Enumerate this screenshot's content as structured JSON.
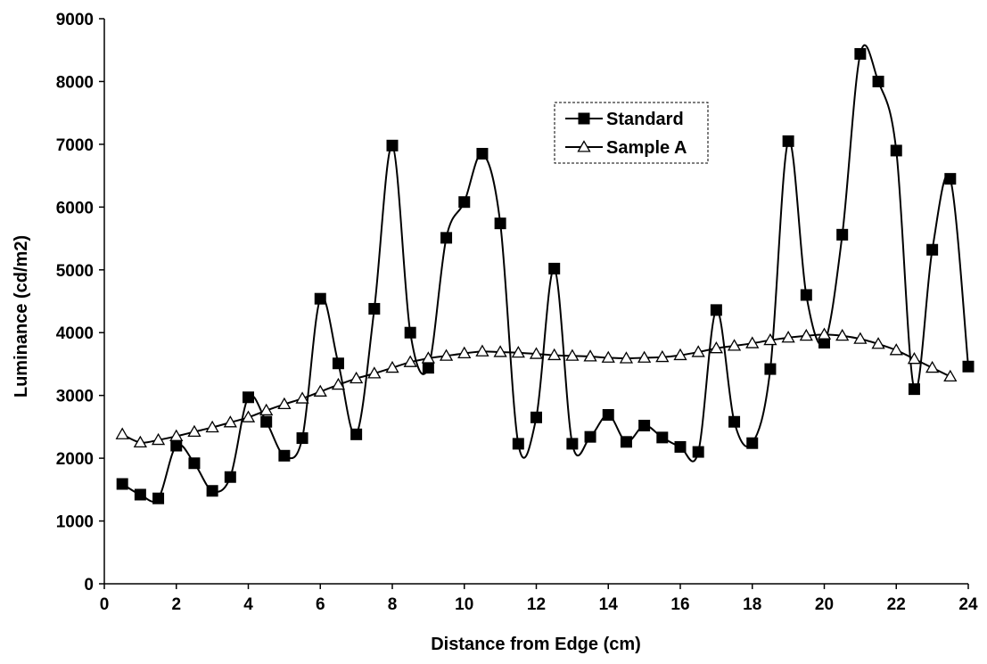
{
  "chart_data": {
    "type": "line",
    "xlabel": "Distance from Edge (cm)",
    "ylabel": "Luminance (cd/m2)",
    "xlim": [
      0,
      24
    ],
    "ylim": [
      0,
      9000
    ],
    "x_ticks": [
      "0",
      "2",
      "4",
      "6",
      "8",
      "10",
      "12",
      "14",
      "16",
      "18",
      "20",
      "22",
      "24"
    ],
    "y_ticks": [
      "0",
      "1000",
      "2000",
      "3000",
      "4000",
      "5000",
      "6000",
      "7000",
      "8000",
      "9000"
    ],
    "grid": false,
    "legend_position": "top-right",
    "series": [
      {
        "name": "Standard",
        "marker": "filled-square",
        "color": "#000000",
        "x": [
          0.5,
          1,
          1.5,
          2,
          2.5,
          3,
          3.5,
          4,
          4.5,
          5,
          5.5,
          6,
          6.5,
          7,
          7.5,
          8,
          8.5,
          9,
          9.5,
          10,
          10.5,
          11,
          11.5,
          12,
          12.5,
          13,
          13.5,
          14,
          14.5,
          15,
          15.5,
          16,
          16.5,
          17,
          17.5,
          18,
          18.5,
          19,
          19.5,
          20,
          20.5,
          21,
          21.5,
          22,
          22.5,
          23,
          23.5,
          24
        ],
        "values": [
          1590,
          1420,
          1360,
          2200,
          1920,
          1480,
          1700,
          2970,
          2580,
          2040,
          2320,
          4540,
          3510,
          2380,
          4380,
          6980,
          4000,
          3440,
          5510,
          6080,
          6850,
          5740,
          2230,
          2650,
          5020,
          2230,
          2340,
          2690,
          2260,
          2520,
          2330,
          2180,
          2100,
          4360,
          2580,
          2240,
          3420,
          7050,
          4600,
          3840,
          5560,
          8440,
          8000,
          6900,
          3100,
          5320,
          6450,
          3460
        ]
      },
      {
        "name": "Sample A",
        "marker": "open-triangle",
        "color": "#000000",
        "x": [
          0.5,
          1,
          1.5,
          2,
          2.5,
          3,
          3.5,
          4,
          4.5,
          5,
          5.5,
          6,
          6.5,
          7,
          7.5,
          8,
          8.5,
          9,
          9.5,
          10,
          10.5,
          11,
          11.5,
          12,
          12.5,
          13,
          13.5,
          14,
          14.5,
          15,
          15.5,
          16,
          16.5,
          17,
          17.5,
          18,
          18.5,
          19,
          19.5,
          20,
          20.5,
          21,
          21.5,
          22,
          22.5,
          23,
          23.5
        ],
        "values": [
          2380,
          2250,
          2290,
          2350,
          2420,
          2490,
          2570,
          2650,
          2760,
          2860,
          2950,
          3060,
          3170,
          3270,
          3350,
          3440,
          3530,
          3590,
          3630,
          3670,
          3700,
          3690,
          3680,
          3660,
          3640,
          3630,
          3620,
          3600,
          3590,
          3600,
          3610,
          3640,
          3690,
          3750,
          3790,
          3830,
          3880,
          3920,
          3950,
          3970,
          3950,
          3900,
          3820,
          3720,
          3580,
          3440,
          3300
        ]
      }
    ]
  }
}
